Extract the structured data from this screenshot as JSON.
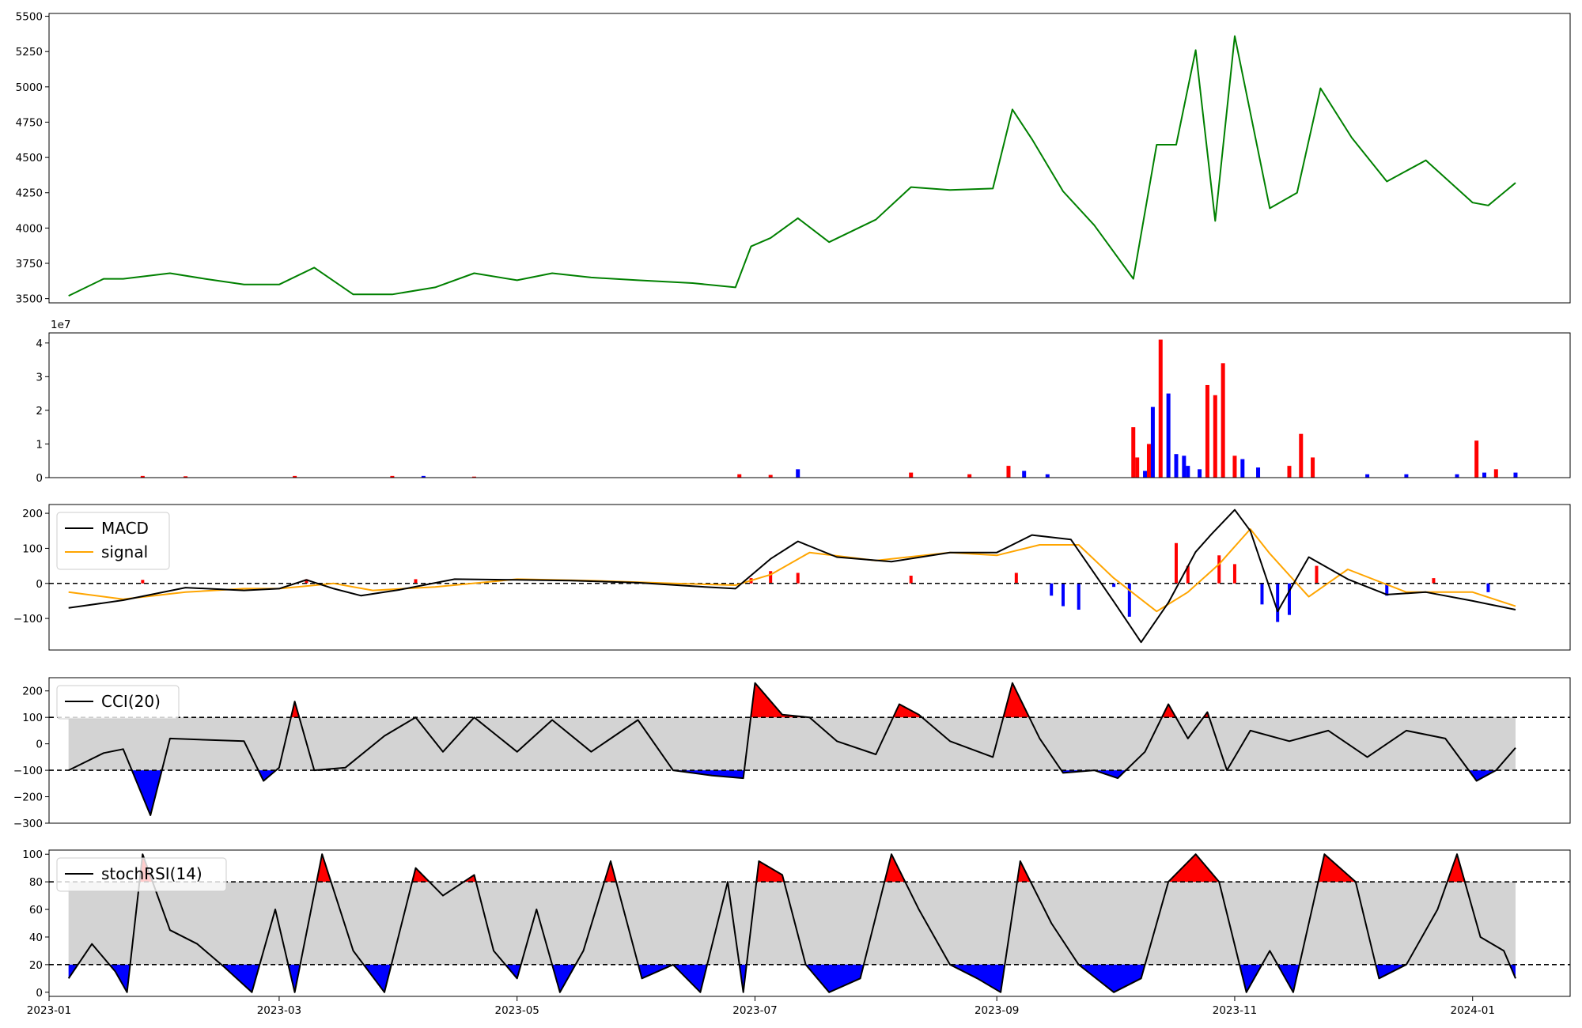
{
  "x_axis": {
    "start": "2023-01-01",
    "end": "2024-01-26",
    "ticks": [
      "2023-01",
      "2023-03",
      "2023-05",
      "2023-07",
      "2023-09",
      "2023-11",
      "2024-01"
    ],
    "tick_dates": [
      "2023-01-01",
      "2023-03-01",
      "2023-05-01",
      "2023-07-01",
      "2023-09-01",
      "2023-11-01",
      "2024-01-01"
    ]
  },
  "colors": {
    "price": "#008000",
    "up": "#ff0000",
    "down": "#0000ff",
    "signal": "#ffa500",
    "band": "#d3d3d3",
    "line": "#000000"
  },
  "chart_data": [
    {
      "type": "line",
      "panel": "price",
      "ylim": [
        3470,
        5520
      ],
      "yticks": [
        3500,
        3750,
        4000,
        4250,
        4500,
        4750,
        5000,
        5250,
        5500
      ],
      "series": [
        {
          "x": [
            "2023-01-06",
            "2023-01-15",
            "2023-01-20",
            "2023-02-01",
            "2023-02-10",
            "2023-02-20",
            "2023-03-01",
            "2023-03-10",
            "2023-03-20",
            "2023-03-30",
            "2023-04-10",
            "2023-04-20",
            "2023-05-01",
            "2023-05-10",
            "2023-05-20",
            "2023-06-01",
            "2023-06-15",
            "2023-06-26",
            "2023-06-30",
            "2023-07-05",
            "2023-07-12",
            "2023-07-20",
            "2023-08-01",
            "2023-08-10",
            "2023-08-20",
            "2023-08-31",
            "2023-09-05",
            "2023-09-10",
            "2023-09-18",
            "2023-09-26",
            "2023-10-06",
            "2023-10-12",
            "2023-10-17",
            "2023-10-22",
            "2023-10-27",
            "2023-11-01",
            "2023-11-10",
            "2023-11-17",
            "2023-11-23",
            "2023-12-01",
            "2023-12-10",
            "2023-12-20",
            "2024-01-01",
            "2024-01-05",
            "2024-01-12"
          ],
          "values": [
            3520,
            3640,
            3640,
            3680,
            3640,
            3600,
            3600,
            3720,
            3530,
            3530,
            3580,
            3680,
            3630,
            3680,
            3650,
            3630,
            3610,
            3580,
            3870,
            3930,
            4070,
            3900,
            4060,
            4290,
            4270,
            4280,
            4840,
            4630,
            4260,
            4020,
            3640,
            4590,
            4590,
            5260,
            4050,
            5360,
            4140,
            4250,
            4990,
            4640,
            4330,
            4480,
            4180,
            4160,
            4320
          ]
        }
      ]
    },
    {
      "type": "bar",
      "panel": "volume",
      "ylim": [
        0,
        4.3
      ],
      "yticks": [
        0,
        1,
        2,
        3,
        4
      ],
      "ytick_labels": [
        "0",
        "1",
        "2",
        "3",
        "4"
      ],
      "scale_label": "1e7",
      "series": [
        {
          "x": [
            "2023-01-25",
            "2023-02-05",
            "2023-03-05",
            "2023-03-30",
            "2023-04-07",
            "2023-04-20",
            "2023-06-27",
            "2023-07-05",
            "2023-07-12",
            "2023-08-10",
            "2023-08-25",
            "2023-09-04",
            "2023-09-08",
            "2023-09-14",
            "2023-10-06",
            "2023-10-07",
            "2023-10-09",
            "2023-10-10",
            "2023-10-11",
            "2023-10-13",
            "2023-10-15",
            "2023-10-17",
            "2023-10-19",
            "2023-10-20",
            "2023-10-23",
            "2023-10-25",
            "2023-10-27",
            "2023-10-29",
            "2023-11-01",
            "2023-11-03",
            "2023-11-07",
            "2023-11-15",
            "2023-11-18",
            "2023-11-21",
            "2023-12-05",
            "2023-12-15",
            "2023-12-28",
            "2024-01-02",
            "2024-01-04",
            "2024-01-07",
            "2024-01-12"
          ],
          "values": [
            0.05,
            0.04,
            0.05,
            0.05,
            0.05,
            0.03,
            0.1,
            0.08,
            0.25,
            0.15,
            0.1,
            0.35,
            0.2,
            0.1,
            1.5,
            0.6,
            0.2,
            1.0,
            2.1,
            4.1,
            2.5,
            0.7,
            0.65,
            0.35,
            0.25,
            2.75,
            2.45,
            3.4,
            0.65,
            0.55,
            0.3,
            0.35,
            1.3,
            0.6,
            0.1,
            0.1,
            0.1,
            1.1,
            0.15,
            0.25,
            0.15
          ],
          "colors": [
            "up",
            "up",
            "up",
            "up",
            "down",
            "up",
            "up",
            "up",
            "down",
            "up",
            "up",
            "up",
            "down",
            "down",
            "up",
            "up",
            "down",
            "up",
            "down",
            "up",
            "down",
            "down",
            "down",
            "down",
            "down",
            "up",
            "up",
            "up",
            "up",
            "down",
            "down",
            "up",
            "up",
            "up",
            "down",
            "down",
            "down",
            "up",
            "down",
            "up",
            "down"
          ]
        }
      ]
    },
    {
      "type": "line",
      "panel": "macd",
      "ylim": [
        -190,
        225
      ],
      "yticks": [
        -100,
        0,
        100,
        200
      ],
      "ytick_labels": [
        "−100",
        "0",
        "100",
        "200"
      ],
      "reference_lines": [
        0
      ],
      "legend": [
        "MACD",
        "signal"
      ],
      "series": [
        {
          "name": "MACD",
          "x": [
            "2023-01-06",
            "2023-01-20",
            "2023-02-05",
            "2023-02-20",
            "2023-03-01",
            "2023-03-08",
            "2023-03-15",
            "2023-03-22",
            "2023-04-01",
            "2023-04-15",
            "2023-05-01",
            "2023-05-15",
            "2023-06-01",
            "2023-06-15",
            "2023-06-26",
            "2023-07-05",
            "2023-07-12",
            "2023-07-22",
            "2023-08-05",
            "2023-08-20",
            "2023-09-01",
            "2023-09-10",
            "2023-09-20",
            "2023-10-01",
            "2023-10-08",
            "2023-10-15",
            "2023-10-22",
            "2023-10-26",
            "2023-11-01",
            "2023-11-05",
            "2023-11-12",
            "2023-11-20",
            "2023-11-30",
            "2023-12-10",
            "2023-12-20",
            "2024-01-01",
            "2024-01-12"
          ],
          "values": [
            -70,
            -48,
            -12,
            -20,
            -15,
            10,
            -15,
            -35,
            -18,
            12,
            10,
            8,
            2,
            -8,
            -15,
            70,
            120,
            75,
            62,
            88,
            88,
            138,
            125,
            -52,
            -168,
            -55,
            90,
            140,
            210,
            150,
            -80,
            75,
            12,
            -32,
            -25,
            -50,
            -75
          ]
        },
        {
          "name": "signal",
          "x": [
            "2023-01-06",
            "2023-01-20",
            "2023-02-05",
            "2023-02-20",
            "2023-03-01",
            "2023-03-15",
            "2023-03-25",
            "2023-04-10",
            "2023-05-01",
            "2023-05-20",
            "2023-06-10",
            "2023-06-26",
            "2023-07-05",
            "2023-07-15",
            "2023-08-01",
            "2023-08-20",
            "2023-09-01",
            "2023-09-12",
            "2023-09-22",
            "2023-10-01",
            "2023-10-12",
            "2023-10-20",
            "2023-10-28",
            "2023-11-05",
            "2023-11-10",
            "2023-11-20",
            "2023-11-30",
            "2023-12-15",
            "2024-01-01",
            "2024-01-12"
          ],
          "values": [
            -25,
            -45,
            -25,
            -15,
            -15,
            0,
            -20,
            -10,
            12,
            8,
            0,
            -5,
            25,
            88,
            65,
            88,
            80,
            110,
            110,
            15,
            -80,
            -25,
            55,
            155,
            85,
            -38,
            40,
            -25,
            -25,
            -65
          ]
        }
      ],
      "histogram": {
        "x": [
          "2023-01-25",
          "2023-03-08",
          "2023-04-05",
          "2023-06-30",
          "2023-07-05",
          "2023-07-12",
          "2023-08-10",
          "2023-09-06",
          "2023-09-15",
          "2023-09-18",
          "2023-09-22",
          "2023-10-01",
          "2023-10-05",
          "2023-10-17",
          "2023-10-20",
          "2023-10-28",
          "2023-11-01",
          "2023-11-08",
          "2023-11-12",
          "2023-11-15",
          "2023-11-22",
          "2023-12-10",
          "2023-12-22",
          "2024-01-05"
        ],
        "values": [
          10,
          12,
          12,
          15,
          35,
          30,
          22,
          30,
          -35,
          -65,
          -75,
          -10,
          -95,
          115,
          50,
          80,
          55,
          -60,
          -110,
          -90,
          50,
          -35,
          15,
          -25
        ]
      }
    },
    {
      "type": "line",
      "panel": "cci",
      "ylim": [
        -300,
        250
      ],
      "yticks": [
        -300,
        -200,
        -100,
        0,
        100,
        200
      ],
      "ytick_labels": [
        "−300",
        "−200",
        "−100",
        "0",
        "100",
        "200"
      ],
      "reference_lines": [
        100,
        -100
      ],
      "legend": [
        "CCI(20)"
      ],
      "series": [
        {
          "name": "CCI(20)",
          "x": [
            "2023-01-06",
            "2023-01-15",
            "2023-01-20",
            "2023-01-27",
            "2023-02-01",
            "2023-02-20",
            "2023-02-25",
            "2023-03-01",
            "2023-03-05",
            "2023-03-10",
            "2023-03-18",
            "2023-03-28",
            "2023-04-05",
            "2023-04-12",
            "2023-04-20",
            "2023-05-01",
            "2023-05-10",
            "2023-05-20",
            "2023-06-01",
            "2023-06-10",
            "2023-06-20",
            "2023-06-28",
            "2023-07-01",
            "2023-07-08",
            "2023-07-15",
            "2023-07-22",
            "2023-08-01",
            "2023-08-07",
            "2023-08-12",
            "2023-08-20",
            "2023-08-31",
            "2023-09-05",
            "2023-09-12",
            "2023-09-18",
            "2023-09-26",
            "2023-10-02",
            "2023-10-09",
            "2023-10-15",
            "2023-10-20",
            "2023-10-25",
            "2023-10-30",
            "2023-11-05",
            "2023-11-15",
            "2023-11-25",
            "2023-12-05",
            "2023-12-15",
            "2023-12-25",
            "2024-01-02",
            "2024-01-07",
            "2024-01-12"
          ],
          "values": [
            -100,
            -35,
            -20,
            -270,
            20,
            10,
            -140,
            -90,
            160,
            -100,
            -90,
            30,
            100,
            -30,
            100,
            -30,
            90,
            -30,
            90,
            -100,
            -120,
            -130,
            230,
            110,
            100,
            10,
            -40,
            150,
            110,
            10,
            -50,
            230,
            20,
            -110,
            -100,
            -130,
            -30,
            150,
            20,
            120,
            -100,
            50,
            10,
            50,
            -50,
            50,
            20,
            -140,
            -100,
            -15
          ]
        }
      ]
    },
    {
      "type": "line",
      "panel": "stochrsi",
      "ylim": [
        -3,
        103
      ],
      "yticks": [
        0,
        20,
        40,
        60,
        80,
        100
      ],
      "ytick_labels": [
        "0",
        "20",
        "40",
        "60",
        "80",
        "100"
      ],
      "reference_lines": [
        80,
        20
      ],
      "legend": [
        "stochRSI(14)"
      ],
      "series": [
        {
          "name": "stochRSI(14)",
          "x": [
            "2023-01-06",
            "2023-01-12",
            "2023-01-18",
            "2023-01-21",
            "2023-01-25",
            "2023-02-01",
            "2023-02-08",
            "2023-02-15",
            "2023-02-22",
            "2023-02-28",
            "2023-03-05",
            "2023-03-12",
            "2023-03-20",
            "2023-03-28",
            "2023-04-05",
            "2023-04-12",
            "2023-04-20",
            "2023-04-25",
            "2023-05-01",
            "2023-05-06",
            "2023-05-12",
            "2023-05-18",
            "2023-05-25",
            "2023-06-02",
            "2023-06-10",
            "2023-06-17",
            "2023-06-24",
            "2023-06-28",
            "2023-07-02",
            "2023-07-08",
            "2023-07-14",
            "2023-07-20",
            "2023-07-28",
            "2023-08-05",
            "2023-08-12",
            "2023-08-20",
            "2023-08-27",
            "2023-09-02",
            "2023-09-07",
            "2023-09-15",
            "2023-09-22",
            "2023-10-01",
            "2023-10-08",
            "2023-10-15",
            "2023-10-22",
            "2023-10-28",
            "2023-11-04",
            "2023-11-10",
            "2023-11-16",
            "2023-11-24",
            "2023-12-02",
            "2023-12-08",
            "2023-12-15",
            "2023-12-23",
            "2023-12-28",
            "2024-01-03",
            "2024-01-09",
            "2024-01-12"
          ],
          "values": [
            10,
            35,
            15,
            0,
            100,
            45,
            35,
            18,
            0,
            60,
            0,
            100,
            30,
            0,
            90,
            70,
            85,
            30,
            10,
            60,
            0,
            30,
            95,
            10,
            20,
            0,
            80,
            0,
            95,
            85,
            20,
            0,
            10,
            100,
            60,
            20,
            10,
            0,
            95,
            50,
            20,
            0,
            10,
            80,
            100,
            80,
            0,
            30,
            0,
            100,
            80,
            10,
            20,
            60,
            100,
            40,
            30,
            10
          ]
        }
      ]
    }
  ]
}
